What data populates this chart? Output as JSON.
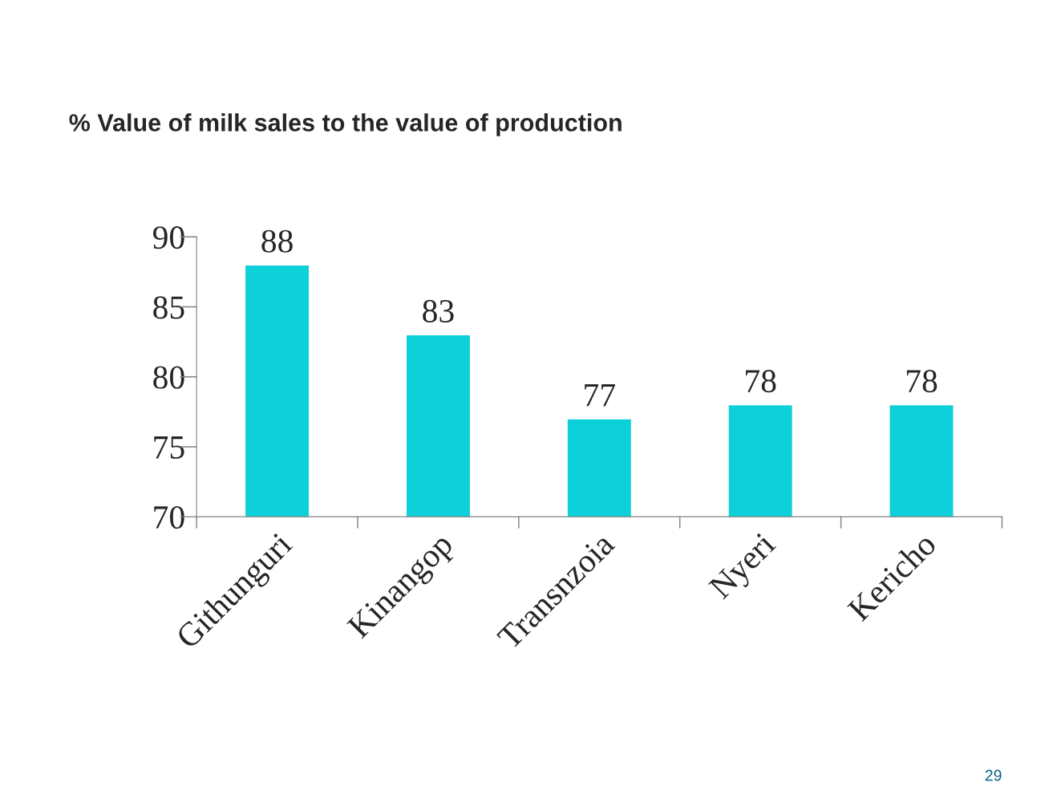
{
  "chart_data": {
    "type": "bar",
    "title": "% Value of milk sales to the value of production",
    "categories": [
      "Githunguri",
      "Kinangop",
      "Transnzoia",
      "Nyeri",
      "Kericho"
    ],
    "values": [
      88,
      83,
      77,
      78,
      78
    ],
    "color": "#0ed0d8",
    "ylim": [
      70,
      90
    ],
    "yticks": [
      70,
      75,
      80,
      85,
      90
    ],
    "grid": false,
    "legend": false,
    "data_labels": true,
    "annotations": [
      "29"
    ]
  }
}
